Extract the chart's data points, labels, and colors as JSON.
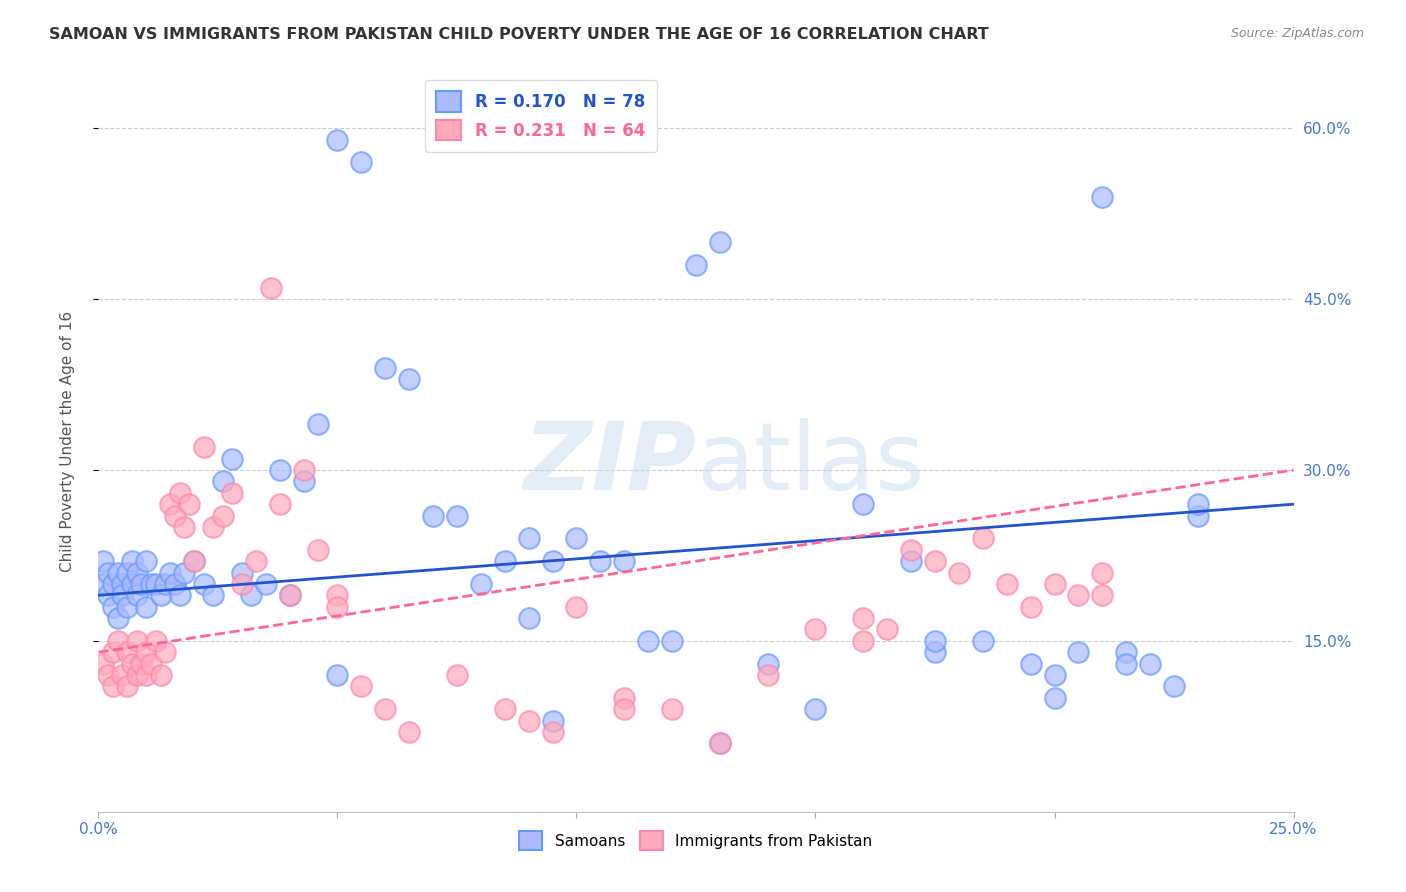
{
  "title": "SAMOAN VS IMMIGRANTS FROM PAKISTAN CHILD POVERTY UNDER THE AGE OF 16 CORRELATION CHART",
  "source": "Source: ZipAtlas.com",
  "ylabel": "Child Poverty Under the Age of 16",
  "x_min": 0.0,
  "x_max": 0.25,
  "y_min": 0.0,
  "y_max": 0.65,
  "x_ticks": [
    0.0,
    0.05,
    0.1,
    0.15,
    0.2,
    0.25
  ],
  "x_tick_labels": [
    "0.0%",
    "",
    "",
    "",
    "",
    "25.0%"
  ],
  "y_ticks": [
    0.15,
    0.3,
    0.45,
    0.6
  ],
  "y_tick_labels": [
    "15.0%",
    "30.0%",
    "45.0%",
    "60.0%"
  ],
  "samoan_color_face": "#aabbff",
  "samoan_color_edge": "#6699ff",
  "pakistan_color_face": "#ffaabb",
  "pakistan_color_edge": "#ff88aa",
  "line_blue": "#2255cc",
  "line_pink": "#ff6699",
  "watermark": "ZIPatlas",
  "background_color": "#ffffff",
  "grid_color": "#cccccc",
  "axis_label_color": "#4477cc",
  "samoan_x": [
    0.001,
    0.001,
    0.002,
    0.002,
    0.003,
    0.003,
    0.004,
    0.004,
    0.005,
    0.005,
    0.006,
    0.006,
    0.007,
    0.007,
    0.008,
    0.008,
    0.009,
    0.01,
    0.01,
    0.011,
    0.012,
    0.013,
    0.014,
    0.015,
    0.016,
    0.017,
    0.018,
    0.02,
    0.022,
    0.024,
    0.026,
    0.028,
    0.03,
    0.032,
    0.035,
    0.038,
    0.04,
    0.043,
    0.046,
    0.05,
    0.055,
    0.06,
    0.065,
    0.07,
    0.075,
    0.08,
    0.085,
    0.09,
    0.095,
    0.1,
    0.105,
    0.11,
    0.115,
    0.12,
    0.125,
    0.13,
    0.14,
    0.15,
    0.16,
    0.17,
    0.175,
    0.185,
    0.195,
    0.2,
    0.205,
    0.21,
    0.215,
    0.22,
    0.225,
    0.23,
    0.05,
    0.09,
    0.095,
    0.13,
    0.175,
    0.2,
    0.215,
    0.23
  ],
  "samoan_y": [
    0.2,
    0.22,
    0.19,
    0.21,
    0.2,
    0.18,
    0.21,
    0.17,
    0.2,
    0.19,
    0.21,
    0.18,
    0.2,
    0.22,
    0.19,
    0.21,
    0.2,
    0.18,
    0.22,
    0.2,
    0.2,
    0.19,
    0.2,
    0.21,
    0.2,
    0.19,
    0.21,
    0.22,
    0.2,
    0.19,
    0.29,
    0.31,
    0.21,
    0.19,
    0.2,
    0.3,
    0.19,
    0.29,
    0.34,
    0.59,
    0.57,
    0.39,
    0.38,
    0.26,
    0.26,
    0.2,
    0.22,
    0.24,
    0.22,
    0.24,
    0.22,
    0.22,
    0.15,
    0.15,
    0.48,
    0.5,
    0.13,
    0.09,
    0.27,
    0.22,
    0.14,
    0.15,
    0.13,
    0.12,
    0.14,
    0.54,
    0.14,
    0.13,
    0.11,
    0.26,
    0.12,
    0.17,
    0.08,
    0.06,
    0.15,
    0.1,
    0.13,
    0.27
  ],
  "pakistan_x": [
    0.001,
    0.002,
    0.003,
    0.003,
    0.004,
    0.005,
    0.006,
    0.006,
    0.007,
    0.008,
    0.008,
    0.009,
    0.01,
    0.01,
    0.011,
    0.012,
    0.013,
    0.014,
    0.015,
    0.016,
    0.017,
    0.018,
    0.019,
    0.02,
    0.022,
    0.024,
    0.026,
    0.028,
    0.03,
    0.033,
    0.036,
    0.038,
    0.04,
    0.043,
    0.046,
    0.05,
    0.055,
    0.06,
    0.065,
    0.075,
    0.085,
    0.09,
    0.095,
    0.1,
    0.11,
    0.12,
    0.13,
    0.14,
    0.15,
    0.16,
    0.165,
    0.17,
    0.175,
    0.18,
    0.185,
    0.19,
    0.195,
    0.2,
    0.205,
    0.21,
    0.05,
    0.11,
    0.16,
    0.21
  ],
  "pakistan_y": [
    0.13,
    0.12,
    0.14,
    0.11,
    0.15,
    0.12,
    0.14,
    0.11,
    0.13,
    0.12,
    0.15,
    0.13,
    0.14,
    0.12,
    0.13,
    0.15,
    0.12,
    0.14,
    0.27,
    0.26,
    0.28,
    0.25,
    0.27,
    0.22,
    0.32,
    0.25,
    0.26,
    0.28,
    0.2,
    0.22,
    0.46,
    0.27,
    0.19,
    0.3,
    0.23,
    0.19,
    0.11,
    0.09,
    0.07,
    0.12,
    0.09,
    0.08,
    0.07,
    0.18,
    0.1,
    0.09,
    0.06,
    0.12,
    0.16,
    0.15,
    0.16,
    0.23,
    0.22,
    0.21,
    0.24,
    0.2,
    0.18,
    0.2,
    0.19,
    0.21,
    0.18,
    0.09,
    0.17,
    0.19
  ]
}
